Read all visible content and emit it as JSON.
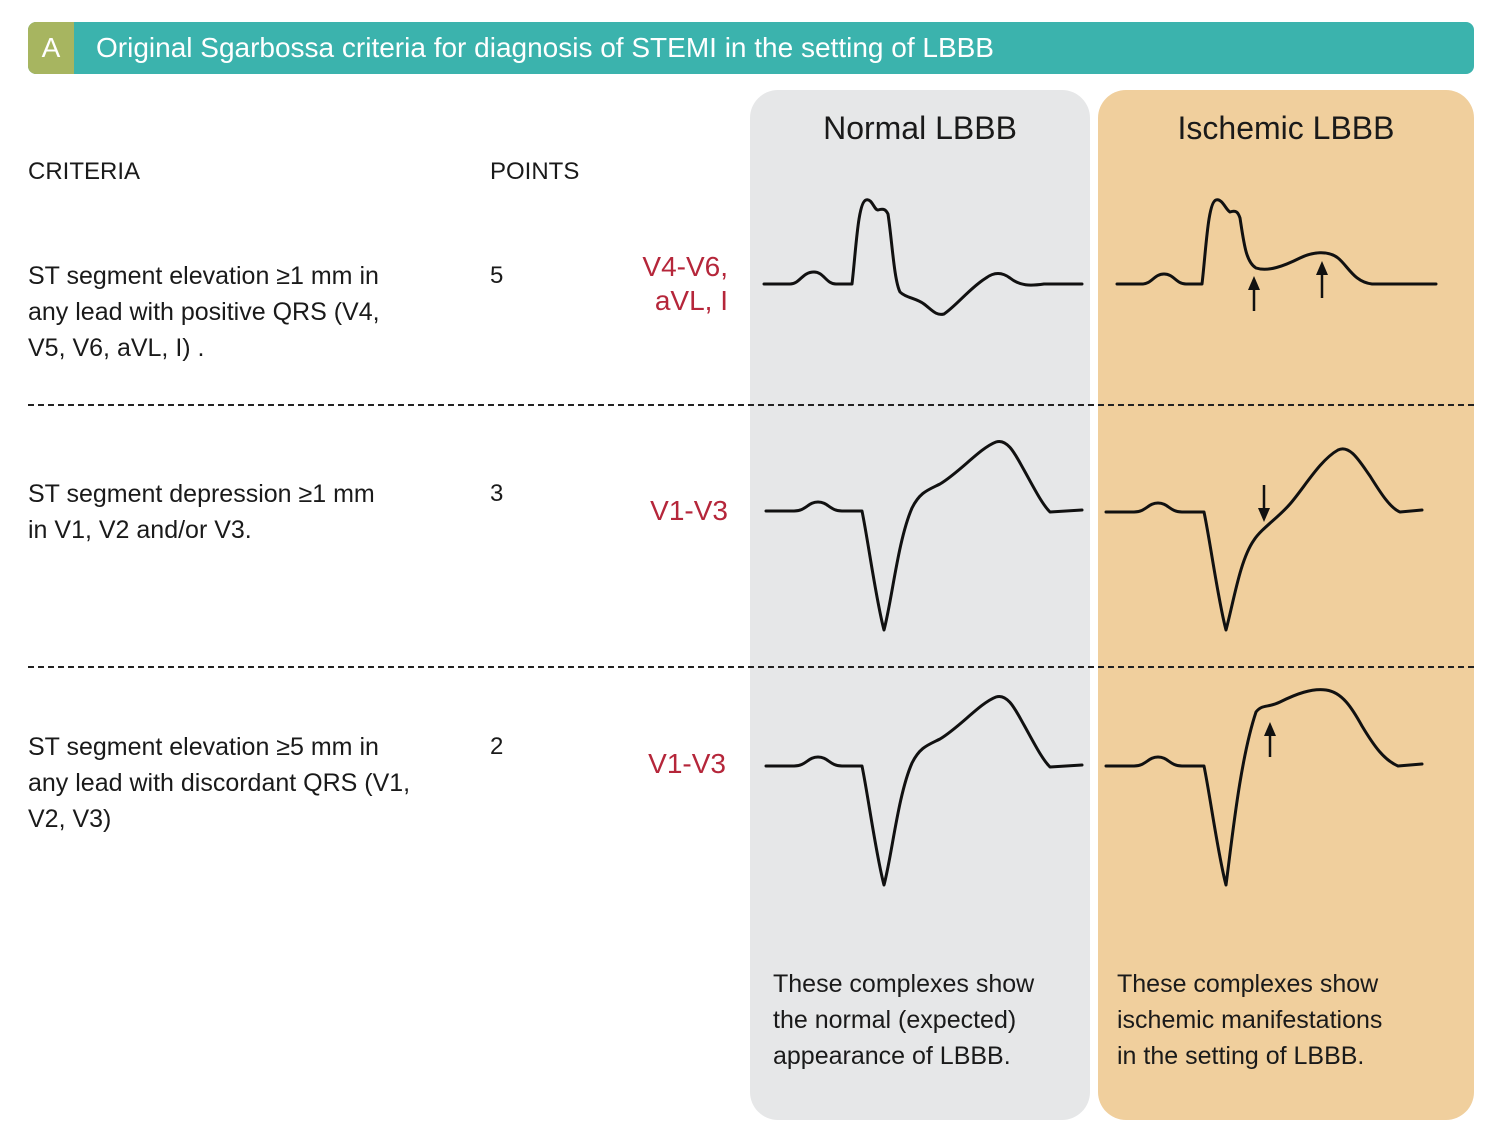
{
  "header": {
    "letter": "A",
    "title": "Original Sgarbossa criteria for diagnosis of STEMI in the setting of LBBB",
    "bar_color": "#3bb3ad",
    "letter_color": "#a7b560"
  },
  "columns": {
    "criteria": "CRITERIA",
    "points": "POINTS"
  },
  "panels": {
    "normal": {
      "title": "Normal LBBB",
      "note": [
        "These complexes show",
        "the normal (expected)",
        "appearance of LBBB."
      ],
      "color": "#e6e7e8"
    },
    "ischemic": {
      "title": "Ischemic LBBB",
      "note": [
        "These complexes show",
        "ischemic manifestations",
        "in the setting of LBBB."
      ],
      "color": "#f0cf9d"
    }
  },
  "rows": [
    {
      "criterion": [
        "ST segment elevation ≥1 mm in",
        "any lead with positive QRS (V4,",
        "V5, V6, aVL, I) ."
      ],
      "points": "5",
      "leads": [
        "V4-V6,",
        "aVL, I"
      ]
    },
    {
      "criterion": [
        "ST segment depression ≥1 mm",
        "in V1, V2 and/or V3."
      ],
      "points": "3",
      "leads": [
        "V1-V3"
      ]
    },
    {
      "criterion": [
        "ST segment elevation ≥5 mm in",
        "any lead with discordant QRS (V1,",
        "V2, V3)"
      ],
      "points": "2",
      "leads": [
        "V1-V3"
      ]
    }
  ],
  "lead_color": "#b5263a"
}
